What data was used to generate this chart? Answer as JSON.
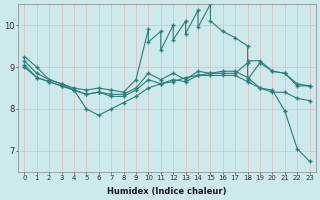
{
  "xlabel": "Humidex (Indice chaleur)",
  "ylabel": "",
  "xlim": [
    -0.5,
    23.5
  ],
  "ylim": [
    6.5,
    10.5
  ],
  "yticks": [
    7,
    8,
    9,
    10
  ],
  "xticks": [
    0,
    1,
    2,
    3,
    4,
    5,
    6,
    7,
    8,
    9,
    10,
    11,
    12,
    13,
    14,
    15,
    16,
    17,
    18,
    19,
    20,
    21,
    22,
    23
  ],
  "background_color": "#cceaec",
  "grid_color": "#e8b8b8",
  "line_color": "#2e7d7a",
  "line1_x": [
    0,
    1,
    2,
    3,
    4,
    5,
    6,
    7,
    8,
    9,
    10,
    11,
    12,
    13,
    14,
    15,
    16,
    17,
    18,
    19,
    20,
    21,
    22,
    23
  ],
  "line1_y": [
    9.25,
    9.0,
    8.7,
    8.6,
    8.45,
    8.0,
    7.85,
    8.0,
    8.15,
    8.3,
    8.5,
    8.6,
    8.65,
    8.75,
    8.8,
    8.85,
    8.9,
    8.9,
    8.75,
    8.5,
    8.45,
    7.95,
    7.05,
    6.75
  ],
  "line2_x": [
    0,
    1,
    2,
    3,
    4,
    5,
    6,
    7,
    8,
    9,
    10,
    10,
    11,
    11,
    12,
    12,
    13,
    13,
    14,
    14,
    15,
    15,
    16,
    17,
    18,
    18,
    19,
    20,
    21,
    22,
    23
  ],
  "line2_y": [
    9.15,
    8.85,
    8.7,
    8.6,
    8.5,
    8.45,
    8.5,
    8.45,
    8.4,
    8.7,
    9.9,
    9.6,
    9.85,
    9.4,
    10.0,
    9.65,
    10.1,
    9.8,
    10.35,
    9.95,
    10.5,
    10.1,
    9.85,
    9.7,
    9.5,
    9.15,
    9.15,
    8.9,
    8.85,
    8.55,
    8.55
  ],
  "line3_x": [
    0,
    1,
    2,
    3,
    4,
    5,
    6,
    7,
    8,
    9,
    10,
    11,
    12,
    13,
    14,
    15,
    16,
    17,
    18,
    18,
    19,
    20,
    21,
    22,
    23
  ],
  "line3_y": [
    9.05,
    8.75,
    8.65,
    8.55,
    8.45,
    8.35,
    8.4,
    8.35,
    8.35,
    8.5,
    8.85,
    8.7,
    8.85,
    8.7,
    8.9,
    8.85,
    8.85,
    8.85,
    9.1,
    8.7,
    9.1,
    8.9,
    8.85,
    8.6,
    8.55
  ],
  "line4_x": [
    0,
    1,
    2,
    3,
    4,
    5,
    6,
    7,
    8,
    9,
    10,
    11,
    12,
    13,
    14,
    15,
    16,
    17,
    18,
    19,
    20,
    21,
    22,
    23
  ],
  "line4_y": [
    9.0,
    8.75,
    8.65,
    8.55,
    8.45,
    8.35,
    8.4,
    8.3,
    8.3,
    8.45,
    8.7,
    8.6,
    8.7,
    8.65,
    8.8,
    8.8,
    8.8,
    8.8,
    8.65,
    8.5,
    8.4,
    8.4,
    8.25,
    8.2
  ]
}
